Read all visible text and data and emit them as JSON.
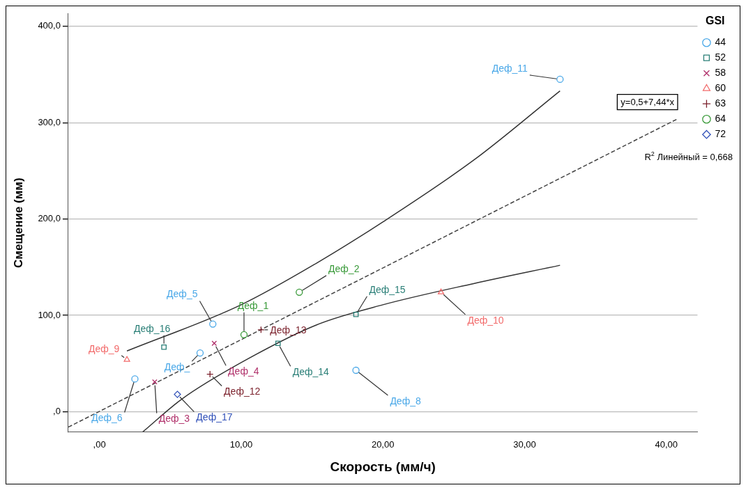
{
  "chart_data": {
    "type": "scatter",
    "xlabel": "Скорость (мм/ч)",
    "ylabel": "Смещение (мм)",
    "legend_title": "GSI",
    "xlim": [
      -2.2,
      42.2
    ],
    "ylim": [
      -21,
      413
    ],
    "xticks": [
      {
        "value": 0,
        "label": ",00"
      },
      {
        "value": 10,
        "label": "10,00"
      },
      {
        "value": 20,
        "label": "20,00"
      },
      {
        "value": 30,
        "label": "30,00"
      },
      {
        "value": 40,
        "label": "40,00"
      }
    ],
    "yticks": [
      {
        "value": 0,
        "label": ",0"
      },
      {
        "value": 100,
        "label": "100,0"
      },
      {
        "value": 200,
        "label": "200,0"
      },
      {
        "value": 300,
        "label": "300,0"
      },
      {
        "value": 400,
        "label": "400,0"
      }
    ],
    "grid": "y",
    "legend": "top right",
    "annotations": [
      {
        "text": "y=0,5+7,44*x",
        "x": 40.8,
        "y": 304
      },
      "R$^{2}$ Линейный = 0,668",
      {
        "text": "Деф_11",
        "x": 32.5,
        "y": 345
      },
      {
        "text": "Деф_5",
        "x": 8.0,
        "y": 91
      },
      {
        "text": "Деф_",
        "x": 7.1,
        "y": 61
      },
      {
        "text": "Деф_6",
        "x": 2.5,
        "y": 34
      },
      {
        "text": "Деф_8",
        "x": 18.1,
        "y": 43
      },
      {
        "text": "Деф_16",
        "x": 4.55,
        "y": 67
      },
      {
        "text": "Деф_14",
        "x": 12.6,
        "y": 71
      },
      {
        "text": "Деф_15",
        "x": 18.1,
        "y": 101
      },
      {
        "text": "Деф_3",
        "x": 3.9,
        "y": 31
      },
      {
        "text": "Деф_4",
        "x": 8.1,
        "y": 71
      },
      {
        "text": "Деф_9",
        "x": 1.94,
        "y": 54
      },
      {
        "text": "Деф_10",
        "x": 24.1,
        "y": 124
      },
      {
        "text": "Деф_12",
        "x": 7.8,
        "y": 39
      },
      {
        "text": "Деф_13",
        "x": 11.4,
        "y": 85
      },
      {
        "text": "Деф_1",
        "x": 10.2,
        "y": 80
      },
      {
        "text": "Деф_2",
        "x": 14.1,
        "y": 124
      },
      {
        "text": "Деф_17",
        "x": 5.5,
        "y": 18
      }
    ],
    "series": [
      {
        "name": "44",
        "color": "#4aa8e8",
        "marker": "circle",
        "x": [
          32.5,
          8.0,
          7.1,
          2.5,
          18.1
        ],
        "values": [
          345,
          91,
          61,
          34,
          43
        ]
      },
      {
        "name": "52",
        "color": "#2a7f77",
        "marker": "square",
        "x": [
          4.55,
          12.6,
          18.1
        ],
        "values": [
          67,
          71,
          101
        ]
      },
      {
        "name": "58",
        "color": "#b0306a",
        "marker": "cross",
        "x": [
          3.9,
          8.1
        ],
        "values": [
          31,
          71
        ]
      },
      {
        "name": "60",
        "color": "#f26b6b",
        "marker": "triangle",
        "x": [
          1.94,
          24.1
        ],
        "values": [
          54,
          124
        ]
      },
      {
        "name": "63",
        "color": "#7a1f2a",
        "marker": "plus",
        "x": [
          7.8,
          11.4
        ],
        "values": [
          39,
          85
        ]
      },
      {
        "name": "64",
        "color": "#3a9a3a",
        "marker": "circle",
        "x": [
          10.2,
          14.1
        ],
        "values": [
          80,
          124
        ]
      },
      {
        "name": "72",
        "color": "#3050b8",
        "marker": "diamond",
        "x": [
          5.5
        ],
        "values": [
          18
        ]
      },
      {
        "type": "line",
        "color": "#444444",
        "line_style": "dashed",
        "marker": "none",
        "x": [
          -2.2,
          40.8
        ],
        "values": [
          -16,
          304
        ]
      },
      {
        "type": "line",
        "color": "#333333",
        "line_style": "solid",
        "marker": "none",
        "x": [
          1.94,
          10,
          15.3,
          20,
          26.4,
          32.5
        ],
        "values": [
          63,
          111,
          154,
          197,
          261,
          333
        ]
      },
      {
        "type": "line",
        "color": "#333333",
        "line_style": "solid",
        "marker": "none",
        "x": [
          3.05,
          5.8,
          10,
          15.3,
          20,
          26.4,
          32.5
        ],
        "values": [
          -21,
          13,
          51,
          90,
          111,
          133,
          152
        ]
      }
    ]
  }
}
